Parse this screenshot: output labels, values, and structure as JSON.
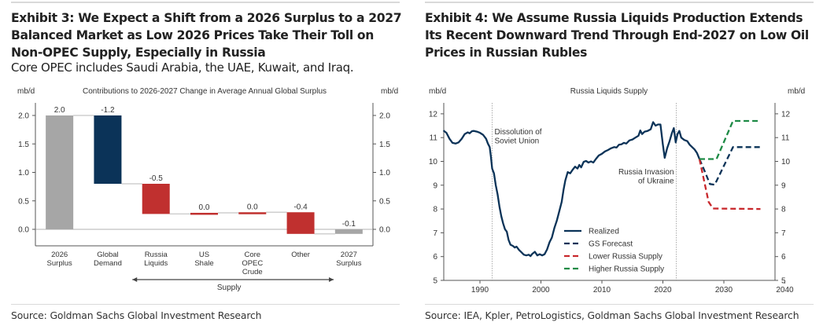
{
  "exhibit3": {
    "title": "Exhibit 3: We Expect a Shift from a 2026 Surplus to a 2027 Balanced Market as Low 2026 Prices Take Their Toll on Non-OPEC Supply, Especially in Russia",
    "title_lines": [
      "Exhibit 3: We Expect a Shift from a 2026 Surplus to a 2027",
      "Balanced Market as Low 2026 Prices Take Their Toll on",
      "Non-OPEC Supply, Especially in Russia"
    ],
    "subtitle": "Core OPEC includes Saudi Arabia, the UAE, Kuwait, and Iraq.",
    "source": "Source: Goldman Sachs Global Investment Research"
  },
  "exhibit4": {
    "title": "Exhibit 4: We Assume Russia Liquids Production Extends Its Recent Downward Trend Through End-2027 on Low Oil Prices in Russian Rubles",
    "title_lines": [
      "Exhibit 4: We Assume Russia Liquids Production Extends",
      "Its Recent Downward Trend Through End-2027 on Low Oil",
      "Prices in Russian Rubles"
    ],
    "source": "Source: IEA, Kpler, PetroLogistics, Goldman Sachs Global Investment Research"
  },
  "chart_data": [
    {
      "type": "bar",
      "subtype": "waterfall",
      "title": "Contributions to 2026-2027 Change in Average Annual Global Surplus",
      "ylabel_left": "mb/d",
      "ylabel_right": "mb/d",
      "ylim": [
        -0.3,
        2.2
      ],
      "yticks": [
        "0.0",
        "0.5",
        "1.0",
        "1.5",
        "2.0"
      ],
      "ytick_values": [
        0,
        0.5,
        1.0,
        1.5,
        2.0
      ],
      "categories": [
        {
          "lines": [
            "2026",
            "Surplus"
          ]
        },
        {
          "lines": [
            "Global",
            "Demand"
          ]
        },
        {
          "lines": [
            "Russia",
            "Liquids"
          ]
        },
        {
          "lines": [
            "US",
            "Shale"
          ]
        },
        {
          "lines": [
            "Core",
            "OPEC",
            "Crude"
          ]
        },
        {
          "lines": [
            "Other"
          ]
        },
        {
          "lines": [
            "2027",
            "Surplus"
          ]
        }
      ],
      "bars": [
        {
          "label": "2.0",
          "start": 0,
          "end": 2.0,
          "kind": "total",
          "color": "#a6a6a6"
        },
        {
          "label": "-1.2",
          "start": 2.0,
          "end": 0.8,
          "kind": "demand",
          "color": "#0b3358"
        },
        {
          "label": "-0.5",
          "start": 0.8,
          "end": 0.27,
          "kind": "supply",
          "color": "#c0302f"
        },
        {
          "label": "0.0",
          "start": 0.27,
          "end": 0.29,
          "kind": "supply",
          "color": "#c0302f"
        },
        {
          "label": "0.0",
          "start": 0.29,
          "end": 0.3,
          "kind": "supply",
          "color": "#c0302f"
        },
        {
          "label": "-0.4",
          "start": 0.3,
          "end": -0.08,
          "kind": "supply",
          "color": "#c0302f"
        },
        {
          "label": "-0.1",
          "start": 0,
          "end": -0.08,
          "kind": "total",
          "color": "#a6a6a6"
        }
      ],
      "bracket_label": "Supply",
      "bracket_span": [
        "Russia Liquids",
        "Other"
      ]
    },
    {
      "type": "line",
      "title": "Russia Liquids Supply",
      "ylabel_left": "mb/d",
      "ylabel_right": "mb/d",
      "ylim": [
        5,
        12.5
      ],
      "xlim": [
        1984,
        2041
      ],
      "yticks": [
        5,
        6,
        7,
        8,
        9,
        10,
        11,
        12
      ],
      "xticks": [
        1990,
        2000,
        2010,
        2020,
        2030,
        2040
      ],
      "annotations": [
        {
          "text_lines": [
            "Dissolution of",
            "Soviet Union"
          ],
          "x": 1992,
          "align": "left"
        },
        {
          "text_lines": [
            "Russia Invasion",
            "of Ukraine"
          ],
          "x": 2022.2,
          "align": "right"
        }
      ],
      "legend": {
        "position": "center-right-bottom",
        "entries": [
          "Realized",
          "GS Forecast",
          "Lower Russia Supply",
          "Higher Russia Supply"
        ]
      },
      "series": [
        {
          "name": "Realized",
          "color": "#0b3358",
          "dash": false,
          "points": [
            [
              1984,
              11.3
            ],
            [
              1984.5,
              11.2
            ],
            [
              1985,
              10.95
            ],
            [
              1985.5,
              10.78
            ],
            [
              1986,
              10.75
            ],
            [
              1986.5,
              10.8
            ],
            [
              1987,
              10.95
            ],
            [
              1987.5,
              11.15
            ],
            [
              1988,
              11.22
            ],
            [
              1988.3,
              11.18
            ],
            [
              1988.7,
              11.27
            ],
            [
              1989,
              11.28
            ],
            [
              1989.5,
              11.25
            ],
            [
              1990,
              11.2
            ],
            [
              1990.5,
              11.12
            ],
            [
              1991,
              10.95
            ],
            [
              1991.3,
              10.75
            ],
            [
              1991.6,
              10.6
            ],
            [
              1991.8,
              10.2
            ],
            [
              1992,
              9.7
            ],
            [
              1992.3,
              9.5
            ],
            [
              1992.6,
              9.0
            ],
            [
              1992.9,
              8.6
            ],
            [
              1993.2,
              8.1
            ],
            [
              1993.5,
              7.7
            ],
            [
              1993.8,
              7.4
            ],
            [
              1994.1,
              7.15
            ],
            [
              1994.4,
              7.05
            ],
            [
              1994.7,
              6.7
            ],
            [
              1995,
              6.5
            ],
            [
              1995.4,
              6.45
            ],
            [
              1995.7,
              6.38
            ],
            [
              1996,
              6.42
            ],
            [
              1996.4,
              6.28
            ],
            [
              1996.8,
              6.18
            ],
            [
              1997.2,
              6.08
            ],
            [
              1997.6,
              6.05
            ],
            [
              1998,
              6.08
            ],
            [
              1998.3,
              6.02
            ],
            [
              1998.6,
              6.12
            ],
            [
              1999,
              6.2
            ],
            [
              1999.4,
              6.05
            ],
            [
              1999.8,
              6.1
            ],
            [
              2000.2,
              6.05
            ],
            [
              2000.6,
              6.1
            ],
            [
              2001,
              6.3
            ],
            [
              2001.4,
              6.6
            ],
            [
              2001.8,
              6.8
            ],
            [
              2002.2,
              7.2
            ],
            [
              2002.6,
              7.5
            ],
            [
              2003,
              7.9
            ],
            [
              2003.4,
              8.3
            ],
            [
              2003.7,
              8.8
            ],
            [
              2004,
              9.2
            ],
            [
              2004.4,
              9.55
            ],
            [
              2004.8,
              9.5
            ],
            [
              2005.2,
              9.65
            ],
            [
              2005.6,
              9.78
            ],
            [
              2006,
              9.7
            ],
            [
              2006.3,
              9.85
            ],
            [
              2006.6,
              9.75
            ],
            [
              2007,
              9.98
            ],
            [
              2007.4,
              10.02
            ],
            [
              2007.8,
              9.95
            ],
            [
              2008.2,
              10.0
            ],
            [
              2008.6,
              9.95
            ],
            [
              2009,
              10.1
            ],
            [
              2009.5,
              10.25
            ],
            [
              2010,
              10.32
            ],
            [
              2010.5,
              10.42
            ],
            [
              2011,
              10.48
            ],
            [
              2011.5,
              10.55
            ],
            [
              2012,
              10.6
            ],
            [
              2012.4,
              10.58
            ],
            [
              2012.8,
              10.7
            ],
            [
              2013.2,
              10.72
            ],
            [
              2013.6,
              10.78
            ],
            [
              2014,
              10.75
            ],
            [
              2014.5,
              10.88
            ],
            [
              2015,
              10.92
            ],
            [
              2015.5,
              11.0
            ],
            [
              2016,
              11.08
            ],
            [
              2016.3,
              11.3
            ],
            [
              2016.6,
              11.15
            ],
            [
              2017,
              11.25
            ],
            [
              2017.5,
              11.28
            ],
            [
              2018,
              11.35
            ],
            [
              2018.4,
              11.65
            ],
            [
              2018.8,
              11.5
            ],
            [
              2019.2,
              11.55
            ],
            [
              2019.6,
              11.55
            ],
            [
              2020,
              10.7
            ],
            [
              2020.3,
              10.15
            ],
            [
              2020.7,
              10.55
            ],
            [
              2021.1,
              10.85
            ],
            [
              2021.5,
              11.2
            ],
            [
              2021.8,
              11.4
            ],
            [
              2022.1,
              10.8
            ],
            [
              2022.4,
              11.15
            ],
            [
              2022.7,
              11.28
            ],
            [
              2023,
              11.0
            ],
            [
              2023.5,
              10.9
            ],
            [
              2024,
              10.85
            ],
            [
              2024.4,
              10.7
            ],
            [
              2024.8,
              10.6
            ],
            [
              2025.2,
              10.5
            ],
            [
              2025.6,
              10.35
            ],
            [
              2026,
              10.1
            ]
          ]
        },
        {
          "name": "GS Forecast",
          "color": "#0b3358",
          "dash": true,
          "points": [
            [
              2026,
              10.1
            ],
            [
              2027,
              9.5
            ],
            [
              2027.7,
              9.05
            ],
            [
              2028.5,
              9.02
            ],
            [
              2031.5,
              10.6
            ],
            [
              2036,
              10.6
            ]
          ]
        },
        {
          "name": "Lower Russia Supply",
          "color": "#c8282c",
          "dash": true,
          "points": [
            [
              2026,
              10.1
            ],
            [
              2027.5,
              8.3
            ],
            [
              2028.2,
              8.02
            ],
            [
              2036,
              8.0
            ]
          ]
        },
        {
          "name": "Higher Russia Supply",
          "color": "#1d8a45",
          "dash": true,
          "points": [
            [
              2026,
              10.1
            ],
            [
              2028.8,
              10.1
            ],
            [
              2031.5,
              11.7
            ],
            [
              2036,
              11.7
            ]
          ]
        }
      ]
    }
  ]
}
